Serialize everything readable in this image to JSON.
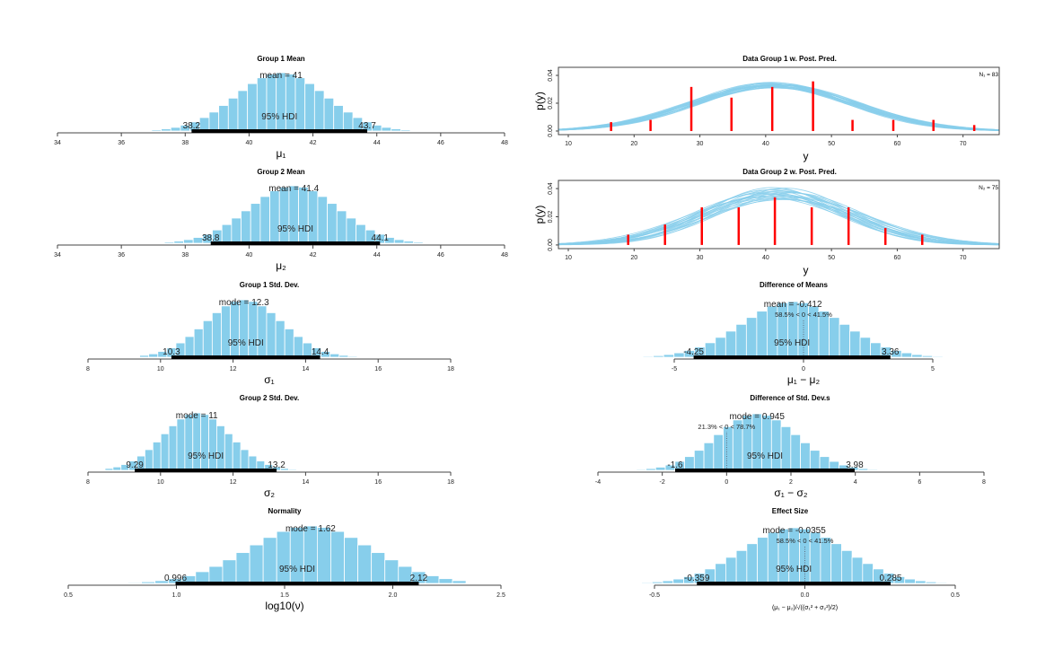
{
  "colors": {
    "bar": "#87CEEB",
    "bar_edge": "#ffffff",
    "hdi": "#000000",
    "data": "#ff0000",
    "pred": "#87CEEB"
  },
  "chart_data": [
    {
      "type": "bar",
      "title": "Group 1 Mean",
      "xlabel": "μ₁",
      "xlim": [
        34,
        48
      ],
      "ticks": [
        [
          34,
          "34"
        ],
        [
          36,
          "36"
        ],
        [
          38,
          "38"
        ],
        [
          40,
          "40"
        ],
        [
          42,
          "42"
        ],
        [
          44,
          "44"
        ],
        [
          46,
          "46"
        ],
        [
          48,
          "48"
        ]
      ],
      "bins": {
        "start": 36.65,
        "width": 0.3,
        "heights": [
          0.011,
          0.021,
          0.037,
          0.063,
          0.101,
          0.156,
          0.231,
          0.325,
          0.438,
          0.564,
          0.693,
          0.813,
          0.912,
          0.977,
          1,
          0.977,
          0.912,
          0.813,
          0.693,
          0.564,
          0.438,
          0.325,
          0.231,
          0.156,
          0.101,
          0.063,
          0.037,
          0.021,
          0.011
        ]
      },
      "central": {
        "label": "mean = 41",
        "value": 41
      },
      "hdi": {
        "label": "95% HDI",
        "low": 38.2,
        "high": 43.7,
        "low_label": "38.2",
        "high_label": "43.7"
      }
    },
    {
      "type": "line",
      "title": "Data Group 1 w. Post. Pred.",
      "xlabel": "y",
      "ylabel": "p(y)",
      "xlim": [
        8.5,
        75.5
      ],
      "ylim": [
        -0.0026,
        0.0458
      ],
      "xticks": [
        [
          10,
          "10"
        ],
        [
          20,
          "20"
        ],
        [
          30,
          "30"
        ],
        [
          40,
          "40"
        ],
        [
          50,
          "50"
        ],
        [
          60,
          "60"
        ],
        [
          70,
          "70"
        ]
      ],
      "yticks": [
        [
          0,
          "0.00"
        ],
        [
          0.02,
          "0.02"
        ],
        [
          0.04,
          "0.04"
        ]
      ],
      "n_label": "N₁ = 83",
      "data_hist": {
        "x": [
          16.5,
          22.5,
          28.7,
          34.8,
          41.0,
          47.2,
          53.2,
          59.4,
          65.5,
          71.7
        ],
        "density": [
          0.0064,
          0.008,
          0.0317,
          0.024,
          0.0317,
          0.0357,
          0.008,
          0.008,
          0.008,
          0.0043
        ]
      },
      "pred_curves": [
        [
          41,
          12
        ],
        [
          40.5,
          12.3
        ],
        [
          41.5,
          11.8
        ],
        [
          42,
          12.5
        ],
        [
          40,
          11.6
        ],
        [
          41.2,
          12.8
        ],
        [
          40.8,
          11.4
        ],
        [
          42.3,
          12.1
        ],
        [
          39.8,
          12.4
        ],
        [
          41.7,
          11.9
        ],
        [
          40.3,
          12.6
        ],
        [
          41.9,
          12.2
        ],
        [
          40.6,
          11.7
        ],
        [
          42.5,
          12.0
        ],
        [
          41.1,
          12.9
        ],
        [
          40.1,
          12.1
        ],
        [
          41.4,
          11.5
        ],
        [
          42.1,
          12.7
        ],
        [
          40.9,
          12.3
        ],
        [
          41.6,
          12.0
        ]
      ]
    },
    {
      "type": "bar",
      "title": "Group 2 Mean",
      "xlabel": "μ₂",
      "xlim": [
        34,
        48
      ],
      "ticks": [
        [
          34,
          "34"
        ],
        [
          36,
          "36"
        ],
        [
          38,
          "38"
        ],
        [
          40,
          "40"
        ],
        [
          42,
          "42"
        ],
        [
          44,
          "44"
        ],
        [
          46,
          "46"
        ],
        [
          48,
          "48"
        ]
      ],
      "bins": {
        "start": 37.05,
        "width": 0.3,
        "heights": [
          0.011,
          0.021,
          0.037,
          0.063,
          0.101,
          0.156,
          0.231,
          0.325,
          0.438,
          0.564,
          0.693,
          0.813,
          0.912,
          0.977,
          1,
          0.977,
          0.912,
          0.813,
          0.693,
          0.564,
          0.438,
          0.325,
          0.231,
          0.156,
          0.101,
          0.063,
          0.037,
          0.021,
          0.011
        ]
      },
      "central": {
        "label": "mean = 41.4",
        "value": 41.4
      },
      "hdi": {
        "label": "95% HDI",
        "low": 38.8,
        "high": 44.1,
        "low_label": "38.8",
        "high_label": "44.1"
      }
    },
    {
      "type": "line",
      "title": "Data Group 2 w. Post. Pred.",
      "xlabel": "y",
      "ylabel": "p(y)",
      "xlim": [
        8.5,
        75.5
      ],
      "ylim": [
        -0.0026,
        0.0458
      ],
      "xticks": [
        [
          10,
          "10"
        ],
        [
          20,
          "20"
        ],
        [
          30,
          "30"
        ],
        [
          40,
          "40"
        ],
        [
          50,
          "50"
        ],
        [
          60,
          "60"
        ],
        [
          70,
          "70"
        ]
      ],
      "yticks": [
        [
          0,
          "0.00"
        ],
        [
          0.02,
          "0.02"
        ],
        [
          0.04,
          "0.04"
        ]
      ],
      "n_label": "N₂ = 75",
      "data_hist": {
        "x": [
          19.1,
          24.7,
          30.3,
          35.9,
          41.4,
          47.0,
          52.6,
          58.2,
          63.8
        ],
        "density": [
          0.0073,
          0.0145,
          0.0267,
          0.0267,
          0.0338,
          0.0267,
          0.0267,
          0.012,
          0.0073
        ]
      },
      "pred_curves": [
        [
          41.4,
          11
        ],
        [
          40.5,
          10.2
        ],
        [
          42.5,
          10.5
        ],
        [
          43.5,
          11.5
        ],
        [
          39.8,
          11.8
        ],
        [
          41,
          9.8
        ],
        [
          42,
          12.2
        ],
        [
          44,
          10.8
        ],
        [
          40.2,
          10.6
        ],
        [
          41.8,
          11.4
        ],
        [
          43,
          9.9
        ],
        [
          42.8,
          12.4
        ],
        [
          40.8,
          11.1
        ],
        [
          41.6,
          10.1
        ],
        [
          43.8,
          11.9
        ],
        [
          39.6,
          10.9
        ],
        [
          42.2,
          10.4
        ],
        [
          41.2,
          12.0
        ],
        [
          40.4,
          11.5
        ],
        [
          43.2,
          10.7
        ]
      ]
    },
    {
      "type": "bar",
      "title": "Group 1 Std. Dev.",
      "xlabel": "σ₁",
      "xlim": [
        8,
        18
      ],
      "ticks": [
        [
          8,
          "8"
        ],
        [
          10,
          "10"
        ],
        [
          12,
          "12"
        ],
        [
          14,
          "14"
        ],
        [
          16,
          "16"
        ],
        [
          18,
          "18"
        ]
      ],
      "bins": {
        "start": 9.425,
        "width": 0.25,
        "heights": [
          0.033,
          0.059,
          0.101,
          0.163,
          0.249,
          0.36,
          0.493,
          0.636,
          0.775,
          0.893,
          0.972,
          1,
          0.972,
          0.893,
          0.775,
          0.636,
          0.493,
          0.36,
          0.249,
          0.163,
          0.101,
          0.059,
          0.033,
          0.017,
          0.008
        ]
      },
      "central": {
        "label": "mode = 12.3",
        "value": 12.3
      },
      "hdi": {
        "label": "95% HDI",
        "low": 10.3,
        "high": 14.4,
        "low_label": "10.3",
        "high_label": "14.4"
      }
    },
    {
      "type": "bar",
      "title": "Difference of Means",
      "xlabel": "μ₁ − μ₂",
      "xlim": [
        -5,
        5
      ],
      "ticks": [
        [
          -5,
          "-5"
        ],
        [
          0,
          "0"
        ],
        [
          5,
          "5"
        ]
      ],
      "bins": {
        "start": -6.21,
        "width": 0.4,
        "heights": [
          0.016,
          0.028,
          0.048,
          0.079,
          0.122,
          0.183,
          0.26,
          0.357,
          0.469,
          0.591,
          0.714,
          0.828,
          0.919,
          0.979,
          1,
          0.979,
          0.919,
          0.828,
          0.714,
          0.591,
          0.469,
          0.357,
          0.26,
          0.183,
          0.122,
          0.079,
          0.048,
          0.028,
          0.016
        ]
      },
      "central": {
        "label": "mean = -0.412",
        "value": -0.412
      },
      "compare": {
        "value": 0,
        "label": "58.5% < 0 < 41.5%"
      },
      "hdi": {
        "label": "95% HDI",
        "low": -4.25,
        "high": 3.36,
        "low_label": "-4.25",
        "high_label": "3.36"
      }
    },
    {
      "type": "bar",
      "title": "Group 2 Std. Dev.",
      "xlabel": "σ₂",
      "xlim": [
        8,
        18
      ],
      "ticks": [
        [
          8,
          "8"
        ],
        [
          10,
          "10"
        ],
        [
          12,
          "12"
        ],
        [
          14,
          "14"
        ],
        [
          16,
          "16"
        ],
        [
          18,
          "18"
        ]
      ],
      "bins": {
        "start": 8.47,
        "width": 0.22,
        "heights": [
          0.033,
          0.059,
          0.101,
          0.163,
          0.249,
          0.36,
          0.493,
          0.636,
          0.775,
          0.893,
          0.972,
          1,
          0.972,
          0.893,
          0.775,
          0.636,
          0.493,
          0.36,
          0.249,
          0.163,
          0.101,
          0.059,
          0.033,
          0.017,
          0.008
        ]
      },
      "central": {
        "label": "mode = 11",
        "value": 11
      },
      "hdi": {
        "label": "95% HDI",
        "low": 9.29,
        "high": 13.2,
        "low_label": "9.29",
        "high_label": "13.2"
      }
    },
    {
      "type": "bar",
      "title": "Difference of Std. Dev.s",
      "xlabel": "σ₁ − σ₂",
      "xlim": [
        -4,
        8
      ],
      "ticks": [
        [
          -4,
          "-4"
        ],
        [
          -2,
          "-2"
        ],
        [
          0,
          "0"
        ],
        [
          2,
          "2"
        ],
        [
          4,
          "4"
        ],
        [
          6,
          "6"
        ],
        [
          8,
          "8"
        ]
      ],
      "bins": {
        "start": -3.105,
        "width": 0.3,
        "heights": [
          0.008,
          0.016,
          0.031,
          0.056,
          0.094,
          0.158,
          0.243,
          0.354,
          0.487,
          0.631,
          0.772,
          0.891,
          0.972,
          1,
          0.972,
          0.891,
          0.772,
          0.631,
          0.487,
          0.354,
          0.243,
          0.158,
          0.094,
          0.056,
          0.031,
          0.016,
          0.008,
          0.004
        ]
      },
      "central": {
        "label": "mode = 0.945",
        "value": 0.945
      },
      "compare": {
        "value": 0,
        "label": "21.3% < 0 < 78.7%"
      },
      "hdi": {
        "label": "95% HDI",
        "low": -1.6,
        "high": 3.98,
        "low_label": "-1.6",
        "high_label": "3.98"
      }
    },
    {
      "type": "bar",
      "title": "Normality",
      "xlabel": "log10(ν)",
      "xlim": [
        0.5,
        2.5
      ],
      "ticks": [
        [
          0.5,
          "0.5"
        ],
        [
          1,
          "1.0"
        ],
        [
          1.5,
          "1.5"
        ],
        [
          2,
          "2.0"
        ],
        [
          2.5,
          "2.5"
        ]
      ],
      "bins": {
        "start": 0.776,
        "width": 0.0625,
        "heights": [
          0.015,
          0.028,
          0.048,
          0.083,
          0.133,
          0.204,
          0.296,
          0.41,
          0.537,
          0.67,
          0.8,
          0.905,
          0.975,
          1,
          0.975,
          0.905,
          0.8,
          0.67,
          0.537,
          0.41,
          0.296,
          0.204,
          0.133,
          0.083,
          0.048
        ]
      },
      "central": {
        "label": "mode = 1.62",
        "value": 1.62
      },
      "hdi": {
        "label": "95% HDI",
        "low": 0.996,
        "high": 2.12,
        "low_label": "0.996",
        "high_label": "2.12"
      }
    },
    {
      "type": "bar",
      "title": "Effect Size",
      "xlabel": "(μ₁ − μ₂)/√((σ₁² + σ₂²)/2)",
      "xlim": [
        -0.5,
        0.5
      ],
      "ticks": [
        [
          -0.5,
          "-0.5"
        ],
        [
          0,
          "0.0"
        ],
        [
          0.5,
          "0.5"
        ]
      ],
      "bins": {
        "start": -0.543,
        "width": 0.035,
        "heights": [
          0.016,
          0.028,
          0.048,
          0.079,
          0.122,
          0.183,
          0.26,
          0.357,
          0.469,
          0.591,
          0.714,
          0.828,
          0.919,
          0.979,
          1,
          0.979,
          0.919,
          0.828,
          0.714,
          0.591,
          0.469,
          0.357,
          0.26,
          0.183,
          0.122,
          0.079,
          0.048,
          0.028,
          0.016
        ]
      },
      "central": {
        "label": "mode = -0.0355",
        "value": -0.0355
      },
      "compare": {
        "value": 0,
        "label": "58.5% < 0 < 41.5%"
      },
      "hdi": {
        "label": "95% HDI",
        "low": -0.359,
        "high": 0.285,
        "low_label": "-0.359",
        "high_label": "0.285"
      }
    }
  ]
}
